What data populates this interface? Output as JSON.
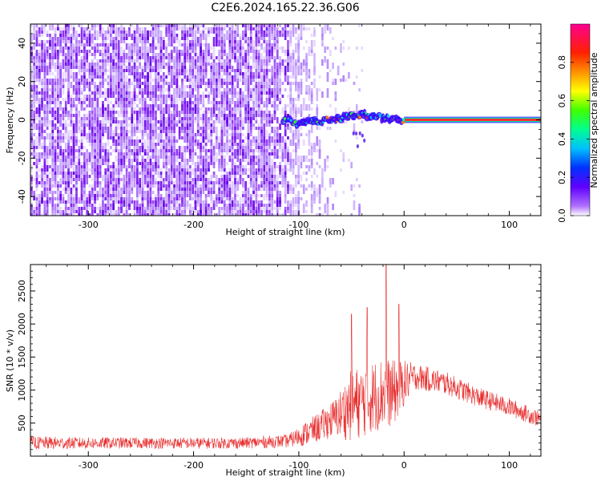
{
  "title": "C2E6.2024.165.22.36.G06",
  "colors": {
    "snr_line": "#e83030",
    "frame": "#000000",
    "track": "#ff2020"
  },
  "chart_data": [
    {
      "type": "heatmap",
      "name": "spectrogram",
      "xlabel": "Height of straight line (km)",
      "ylabel": "Frequency (Hz)",
      "xlim": [
        -355,
        130
      ],
      "ylim": [
        -50,
        50
      ],
      "xticks": [
        -300,
        -200,
        -100,
        0,
        100
      ],
      "yticks": [
        -40,
        -20,
        0,
        20,
        40
      ],
      "colorbar": {
        "label": "Normalized spectral amplitude",
        "range": [
          0,
          1
        ],
        "ticks": [
          "0.0",
          "0.2",
          "0.4",
          "0.6",
          "0.8"
        ],
        "colormap": "hsv-reversed"
      },
      "features": {
        "noise_region_x": [
          -355,
          -75
        ],
        "signal_track": {
          "x_start": -115,
          "x_end": 130,
          "frequency": 0
        },
        "wiggle_points": [
          {
            "x": -115,
            "y": 0
          },
          {
            "x": -100,
            "y": -2
          },
          {
            "x": -90,
            "y": 0
          },
          {
            "x": -80,
            "y": -1
          },
          {
            "x": -70,
            "y": 0
          },
          {
            "x": -60,
            "y": 1
          },
          {
            "x": -50,
            "y": 2
          },
          {
            "x": -40,
            "y": 3
          },
          {
            "x": -30,
            "y": 2
          },
          {
            "x": -20,
            "y": 1
          },
          {
            "x": -10,
            "y": 0
          },
          {
            "x": 0,
            "y": 0
          }
        ]
      }
    },
    {
      "type": "line",
      "name": "snr",
      "xlabel": "Height of straight line (km)",
      "ylabel": "SNR (10 * v/v)",
      "xlim": [
        -355,
        130
      ],
      "ylim": [
        0,
        2900
      ],
      "xticks": [
        -300,
        -200,
        -100,
        0,
        100
      ],
      "yticks": [
        500,
        1000,
        1500,
        2000,
        2500
      ],
      "envelope": [
        {
          "x": -355,
          "base": 170,
          "amp": 200
        },
        {
          "x": -300,
          "base": 170,
          "amp": 180
        },
        {
          "x": -250,
          "base": 175,
          "amp": 170
        },
        {
          "x": -200,
          "base": 170,
          "amp": 170
        },
        {
          "x": -150,
          "base": 175,
          "amp": 170
        },
        {
          "x": -110,
          "base": 200,
          "amp": 200
        },
        {
          "x": -95,
          "base": 280,
          "amp": 350
        },
        {
          "x": -80,
          "base": 380,
          "amp": 450
        },
        {
          "x": -65,
          "base": 500,
          "amp": 600
        },
        {
          "x": -50,
          "base": 600,
          "amp": 1100
        },
        {
          "x": -35,
          "base": 700,
          "amp": 1100
        },
        {
          "x": -20,
          "base": 800,
          "amp": 1100
        },
        {
          "x": -10,
          "base": 800,
          "amp": 1000
        },
        {
          "x": 0,
          "base": 1000,
          "amp": 700
        },
        {
          "x": 10,
          "base": 1150,
          "amp": 400
        },
        {
          "x": 40,
          "base": 1050,
          "amp": 350
        },
        {
          "x": 70,
          "base": 850,
          "amp": 300
        },
        {
          "x": 100,
          "base": 700,
          "amp": 280
        },
        {
          "x": 130,
          "base": 520,
          "amp": 250
        }
      ],
      "spikes": [
        {
          "x": -50,
          "y": 2150
        },
        {
          "x": -35,
          "y": 2250
        },
        {
          "x": -17,
          "y": 2900
        },
        {
          "x": -5,
          "y": 2300
        }
      ]
    }
  ]
}
